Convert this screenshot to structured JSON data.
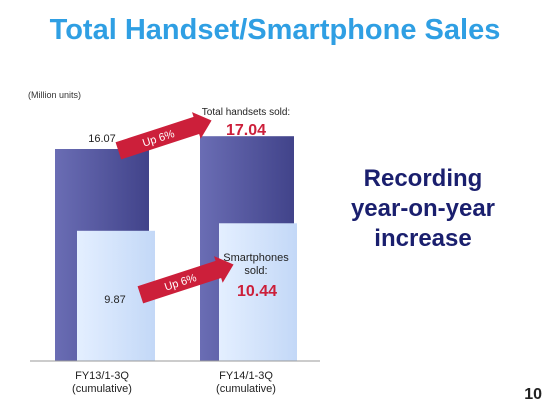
{
  "slide": {
    "title": "Total Handset/Smartphone Sales",
    "side_text": [
      "Recording",
      "year-on-year",
      "increase"
    ],
    "page_number": "10"
  },
  "chart_data": {
    "type": "bar",
    "unit_label": "(Million units)",
    "categories": [
      [
        "FY13/1-3Q",
        "(cumulative)"
      ],
      [
        "FY14/1-3Q",
        "(cumulative)"
      ]
    ],
    "series": [
      {
        "name": "Total handsets sold",
        "values": [
          16.07,
          17.04
        ],
        "color": "#55589f"
      },
      {
        "name": "Smartphones sold",
        "values": [
          9.87,
          10.44
        ],
        "color": "#cfe1fb"
      }
    ],
    "data_labels": {
      "total": [
        "16.07",
        "17.04"
      ],
      "smart": [
        "9.87",
        "10.44"
      ]
    },
    "annotations": {
      "total_caption": "Total handsets sold:",
      "smart_caption": [
        "Smartphones",
        "sold:"
      ],
      "growth_total": "Up 6%",
      "growth_smart": "Up 6%"
    },
    "highlight_color": "#cc1f3a",
    "ylim": [
      0,
      18
    ]
  }
}
